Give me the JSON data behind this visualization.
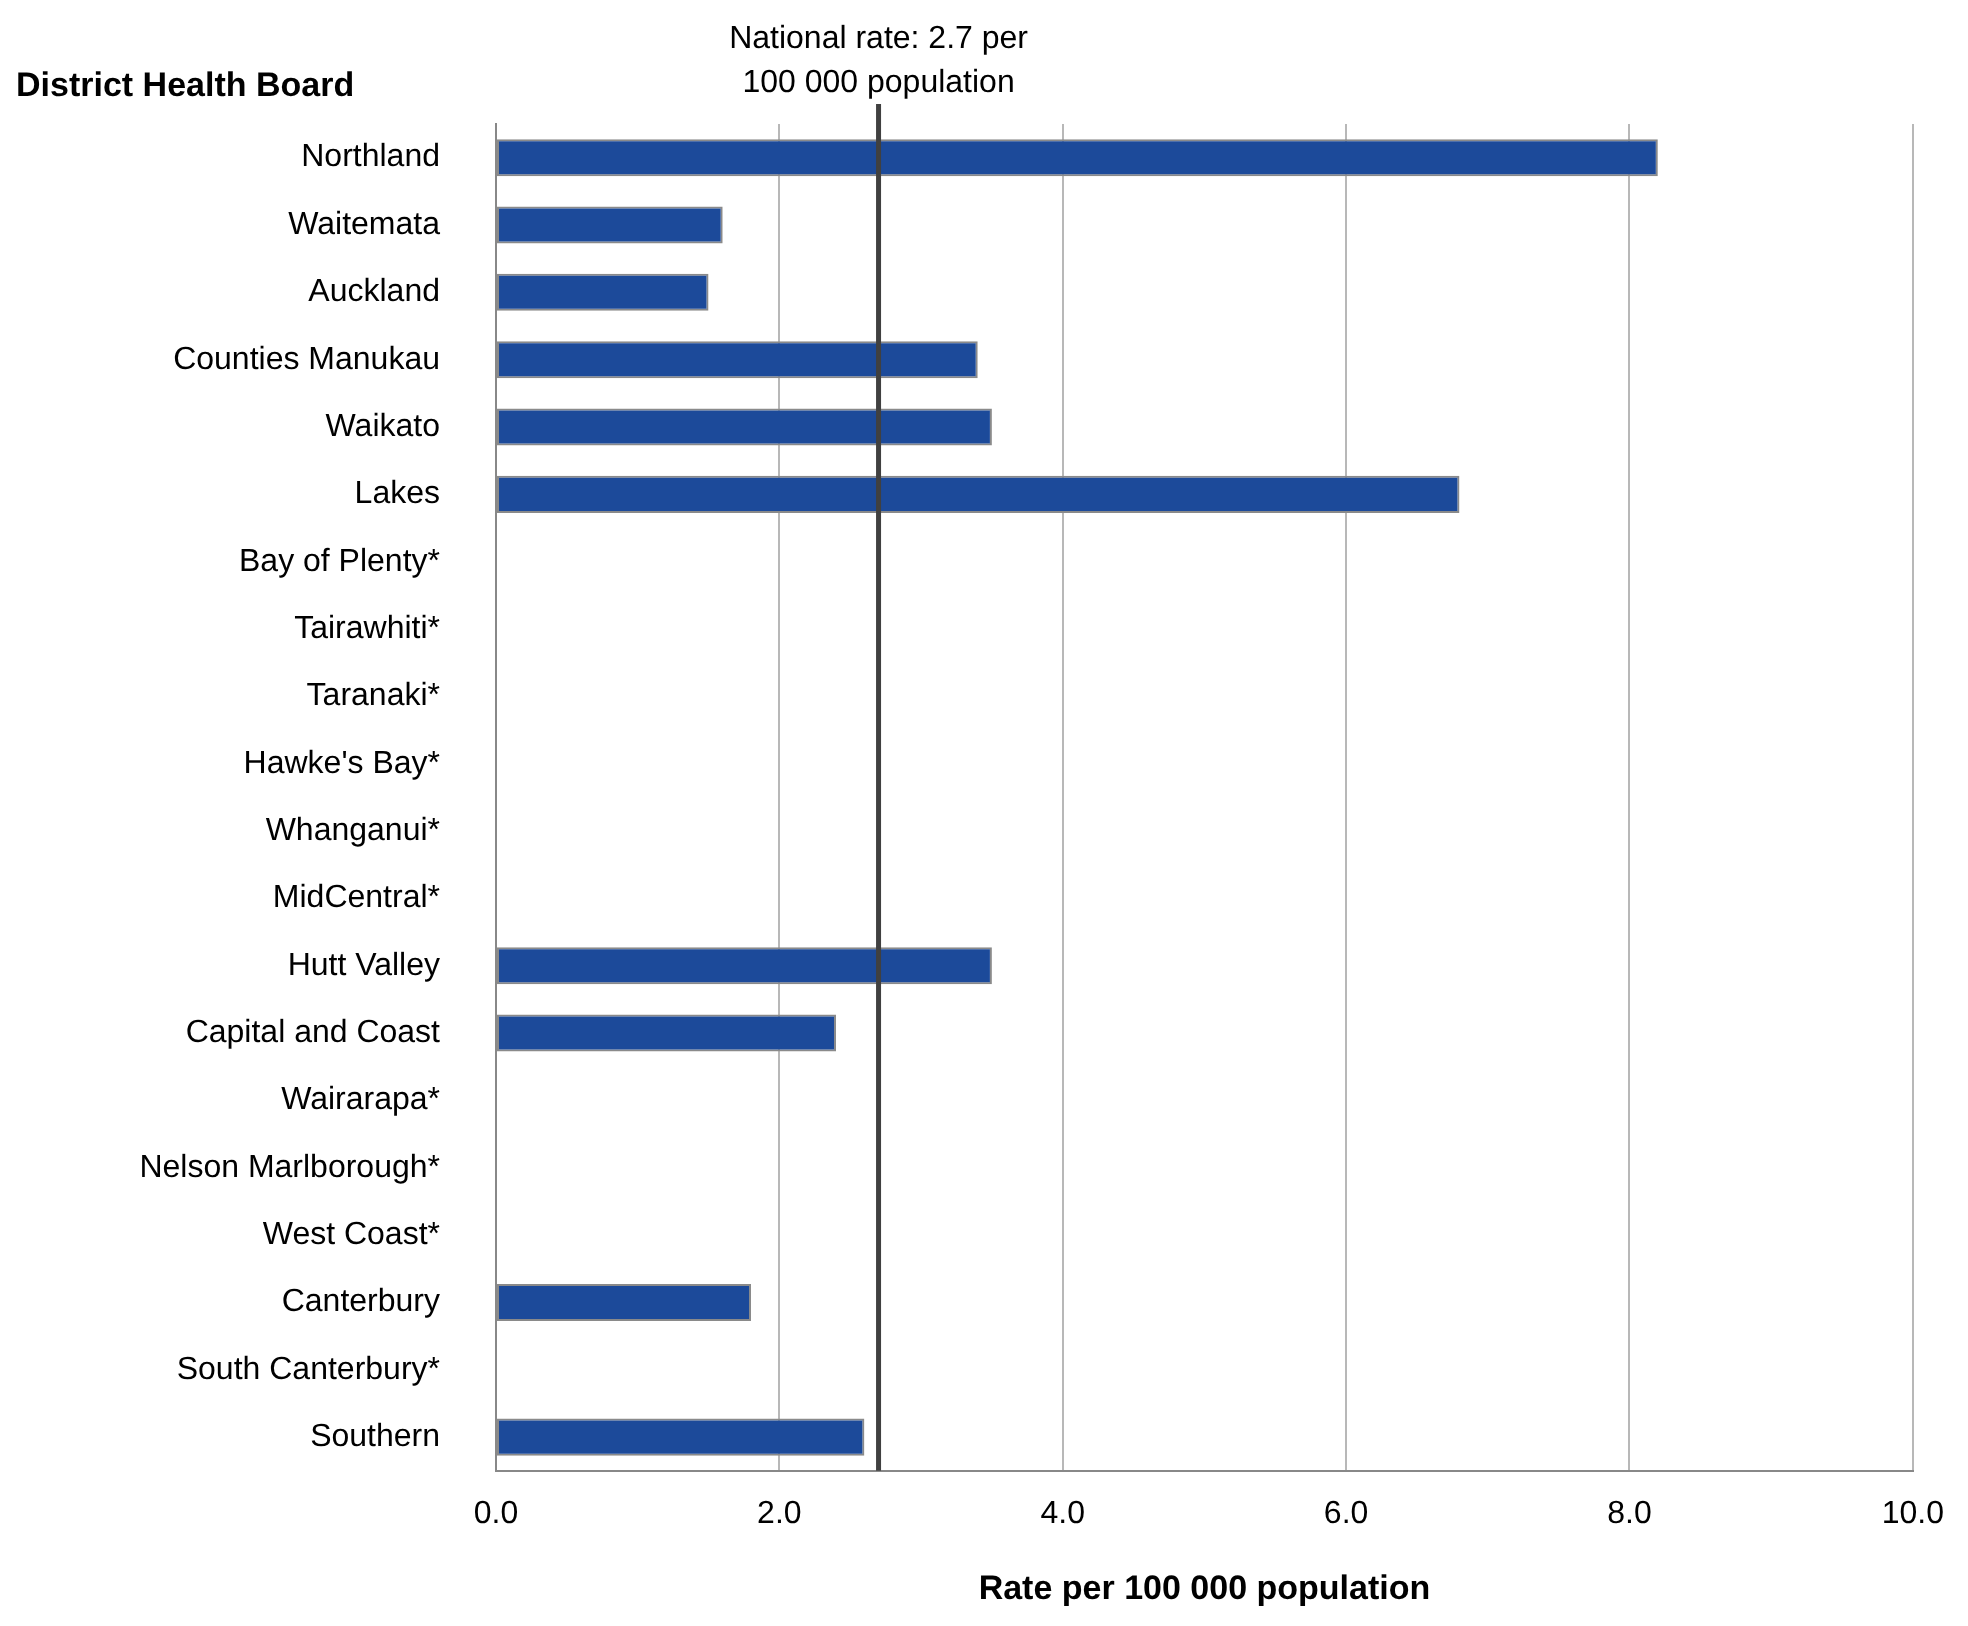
{
  "chart_data": {
    "type": "bar",
    "orientation": "horizontal",
    "ylabel": "District Health Board",
    "xlabel": "Rate per 100 000 population",
    "categories": [
      "Northland",
      "Waitemata",
      "Auckland",
      "Counties Manukau",
      "Waikato",
      "Lakes",
      "Bay of Plenty*",
      "Tairawhiti*",
      "Taranaki*",
      "Hawke's Bay*",
      "Whanganui*",
      "MidCentral*",
      "Hutt Valley",
      "Capital and Coast",
      "Wairarapa*",
      "Nelson Marlborough*",
      "West Coast*",
      "Canterbury",
      "South Canterbury*",
      "Southern"
    ],
    "series": [
      {
        "color": "#1c4a9a",
        "values": [
          8.2,
          1.6,
          1.5,
          3.4,
          3.5,
          6.8,
          null,
          null,
          null,
          null,
          null,
          null,
          3.5,
          2.4,
          null,
          null,
          null,
          1.8,
          null,
          2.6
        ]
      }
    ],
    "xlim": [
      0,
      10
    ],
    "xticks": [
      {
        "value": 0,
        "label": "0.0"
      },
      {
        "value": 2,
        "label": "2.0"
      },
      {
        "value": 4,
        "label": "4.0"
      },
      {
        "value": 6,
        "label": "6.0"
      },
      {
        "value": 8,
        "label": "8.0"
      },
      {
        "value": 10,
        "label": "10.0"
      }
    ],
    "grid": "x",
    "legend": false,
    "ref_lines": [
      {
        "axis": "x",
        "value": 2.7,
        "label": "National rate: 2.7 per 100 000 population",
        "color": "#404040"
      }
    ]
  }
}
